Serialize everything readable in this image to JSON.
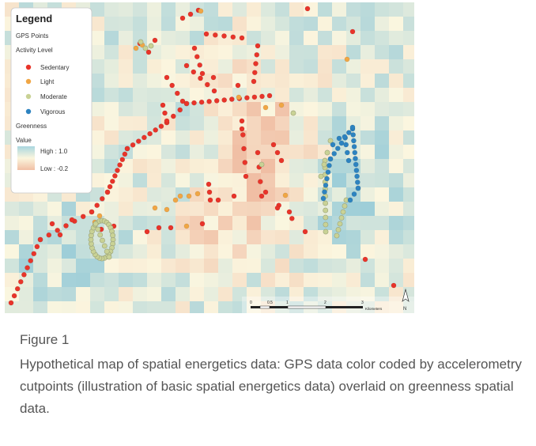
{
  "legend": {
    "title": "Legend",
    "gps_heading": "GPS Points",
    "activity_heading": "Activity Level",
    "items": [
      {
        "label": "Sedentary",
        "color": "#e8342a"
      },
      {
        "label": "Light",
        "color": "#f0a645"
      },
      {
        "label": "Moderate",
        "color": "#c9d295"
      },
      {
        "label": "Vigorous",
        "color": "#2d83c0"
      }
    ],
    "greenness_heading": "Greenness",
    "value_heading": "Value",
    "high_label": "High : 1.0",
    "low_label": "Low : -0.2"
  },
  "scalebar": {
    "ticks": [
      "0",
      "0.5",
      "1",
      "2",
      "3"
    ],
    "unit": "Kilometers",
    "north": "N"
  },
  "caption": {
    "label": "Figure 1",
    "text": "Hypothetical map of spatial energetics data: GPS data color coded by accelerometry cutpoints (illustration of basic spatial energetics data) overlaid on greenness spatial data."
  }
}
